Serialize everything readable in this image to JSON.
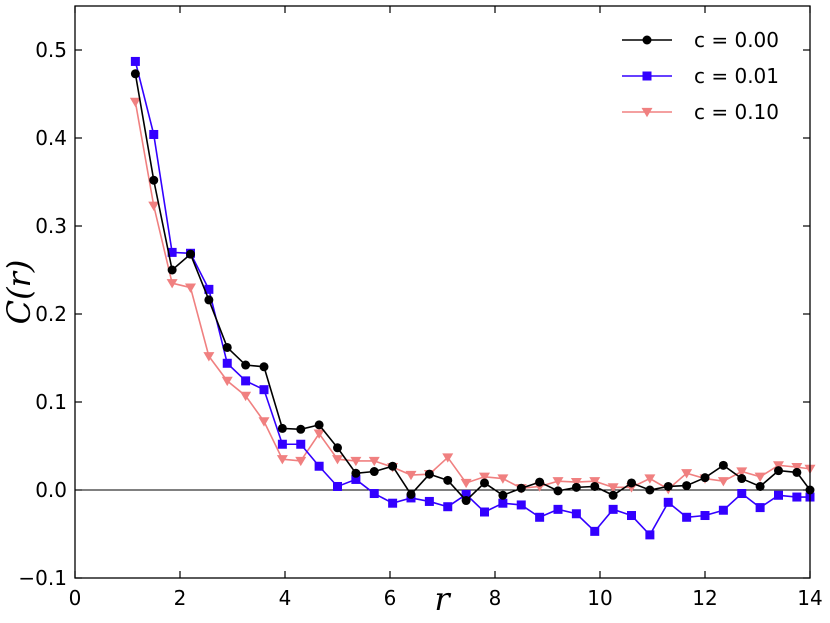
{
  "chart_data": {
    "type": "line",
    "xlabel": "r",
    "ylabel": "C(r)",
    "xlim": [
      0,
      14
    ],
    "ylim": [
      -0.1,
      0.55
    ],
    "x_ticks": [
      0,
      2,
      4,
      6,
      8,
      10,
      12,
      14
    ],
    "x_tick_labels": [
      "0",
      "2",
      "4",
      "6",
      "8",
      "10",
      "12",
      "14"
    ],
    "y_ticks": [
      -0.1,
      0.0,
      0.1,
      0.2,
      0.3,
      0.4,
      0.5
    ],
    "y_tick_labels": [
      "−0.1",
      "0.0",
      "0.1",
      "0.2",
      "0.3",
      "0.4",
      "0.5"
    ],
    "zero_line": true,
    "grid": false,
    "legend_position": "top-right",
    "x": [
      1.15,
      1.5,
      1.85,
      2.2,
      2.55,
      2.9,
      3.25,
      3.6,
      3.95,
      4.3,
      4.65,
      5.0,
      5.35,
      5.7,
      6.05,
      6.4,
      6.75,
      7.1,
      7.45,
      7.8,
      8.15,
      8.5,
      8.85,
      9.2,
      9.55,
      9.9,
      10.25,
      10.6,
      10.95,
      11.3,
      11.65,
      12.0,
      12.35,
      12.7,
      13.05,
      13.4,
      13.75,
      14.0
    ],
    "series": [
      {
        "name": "c = 0.00",
        "color": "#000000",
        "marker": "circle",
        "values": [
          0.473,
          0.352,
          0.25,
          0.268,
          0.216,
          0.162,
          0.142,
          0.14,
          0.07,
          0.069,
          0.074,
          0.048,
          0.019,
          0.021,
          0.027,
          -0.005,
          0.018,
          0.011,
          -0.012,
          0.008,
          -0.006,
          0.002,
          0.009,
          -0.001,
          0.003,
          0.004,
          -0.006,
          0.008,
          0.0,
          0.004,
          0.005,
          0.014,
          0.028,
          0.013,
          0.004,
          0.022,
          0.02,
          0.0
        ]
      },
      {
        "name": "c = 0.01",
        "color": "#3300ff",
        "marker": "square",
        "values": [
          0.487,
          0.404,
          0.27,
          0.269,
          0.228,
          0.144,
          0.124,
          0.114,
          0.052,
          0.052,
          0.027,
          0.004,
          0.012,
          -0.004,
          -0.015,
          -0.009,
          -0.013,
          -0.019,
          -0.005,
          -0.025,
          -0.015,
          -0.017,
          -0.031,
          -0.022,
          -0.027,
          -0.047,
          -0.022,
          -0.029,
          -0.051,
          -0.014,
          -0.031,
          -0.029,
          -0.023,
          -0.004,
          -0.02,
          -0.006,
          -0.008,
          -0.008
        ]
      },
      {
        "name": "c = 0.10",
        "color": "#f08080",
        "marker": "triangle-down",
        "values": [
          0.441,
          0.323,
          0.235,
          0.23,
          0.152,
          0.124,
          0.107,
          0.078,
          0.035,
          0.033,
          0.064,
          0.035,
          0.033,
          0.033,
          0.026,
          0.017,
          0.018,
          0.037,
          0.008,
          0.015,
          0.013,
          0.002,
          0.004,
          0.01,
          0.009,
          0.01,
          0.003,
          0.003,
          0.013,
          0.001,
          0.019,
          0.013,
          0.01,
          0.021,
          0.015,
          0.028,
          0.026,
          0.024
        ]
      }
    ]
  }
}
